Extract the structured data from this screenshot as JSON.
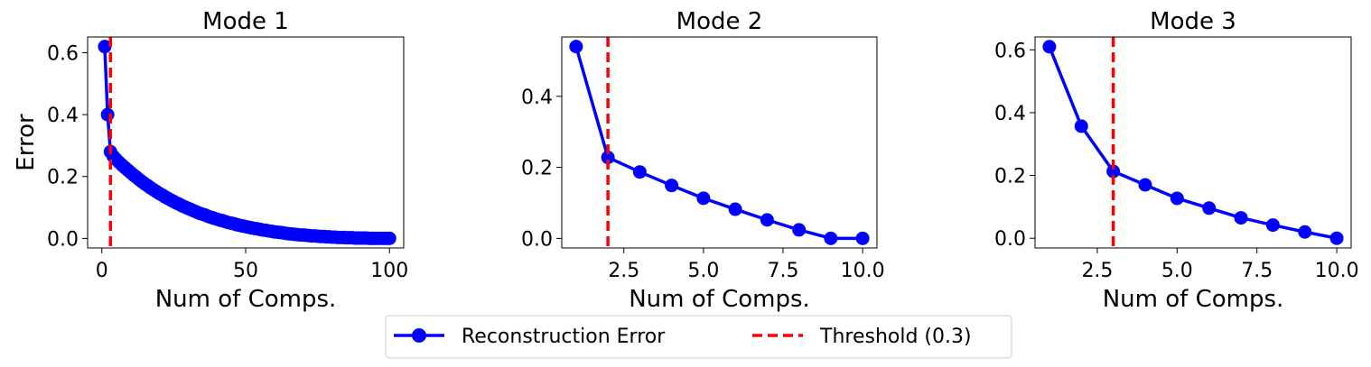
{
  "legend": {
    "series_label": "Reconstruction Error",
    "threshold_label": "Threshold (0.3)"
  },
  "colors": {
    "series": "#0000ff",
    "threshold": "#ff0000"
  },
  "chart_data": [
    {
      "type": "line",
      "title": "Mode 1",
      "xlabel": "Num of Comps.",
      "ylabel": "Error",
      "xlim": [
        -4.95,
        104.95
      ],
      "ylim": [
        -0.031,
        0.651
      ],
      "xticks": [
        {
          "v": 0,
          "label": "0"
        },
        {
          "v": 50,
          "label": "50"
        },
        {
          "v": 100,
          "label": "100"
        }
      ],
      "yticks": [
        {
          "v": 0,
          "label": "0.0"
        },
        {
          "v": 0.2,
          "label": "0.2"
        },
        {
          "v": 0.4,
          "label": "0.4"
        },
        {
          "v": 0.6,
          "label": "0.6"
        }
      ],
      "threshold_x": 3,
      "series": [
        {
          "x": [
            1,
            2,
            3,
            4,
            5,
            6,
            7,
            8,
            9,
            10,
            11,
            12,
            13,
            14,
            15,
            16,
            17,
            18,
            19,
            20,
            21,
            22,
            23,
            24,
            25,
            26,
            27,
            28,
            29,
            30,
            31,
            32,
            33,
            34,
            35,
            36,
            37,
            38,
            39,
            40,
            41,
            42,
            43,
            44,
            45,
            46,
            47,
            48,
            49,
            50,
            51,
            52,
            53,
            54,
            55,
            56,
            57,
            58,
            59,
            60,
            61,
            62,
            63,
            64,
            65,
            66,
            67,
            68,
            69,
            70,
            71,
            72,
            73,
            74,
            75,
            76,
            77,
            78,
            79,
            80,
            81,
            82,
            83,
            84,
            85,
            86,
            87,
            88,
            89,
            90,
            91,
            92,
            93,
            94,
            95,
            96,
            97,
            98,
            99,
            100
          ],
          "y": [
            0.62,
            0.4,
            0.28,
            0.265,
            0.255,
            0.246,
            0.237,
            0.229,
            0.221,
            0.213,
            0.205,
            0.198,
            0.19,
            0.183,
            0.176,
            0.17,
            0.163,
            0.157,
            0.151,
            0.145,
            0.14,
            0.134,
            0.129,
            0.124,
            0.119,
            0.114,
            0.11,
            0.105,
            0.101,
            0.097,
            0.093,
            0.089,
            0.085,
            0.081,
            0.078,
            0.075,
            0.071,
            0.068,
            0.065,
            0.062,
            0.059,
            0.057,
            0.054,
            0.051,
            0.049,
            0.047,
            0.044,
            0.042,
            0.04,
            0.038,
            0.036,
            0.034,
            0.032,
            0.031,
            0.029,
            0.027,
            0.026,
            0.024,
            0.023,
            0.021,
            0.02,
            0.019,
            0.018,
            0.016,
            0.015,
            0.014,
            0.013,
            0.012,
            0.011,
            0.011,
            0.01,
            0.009,
            0.008,
            0.008,
            0.007,
            0.006,
            0.006,
            0.005,
            0.005,
            0.004,
            0.004,
            0.003,
            0.003,
            0.003,
            0.002,
            0.002,
            0.002,
            0.001,
            0.001,
            0.001,
            0.001,
            0.001,
            0,
            0,
            0,
            0,
            0,
            0,
            0,
            0
          ]
        }
      ]
    },
    {
      "type": "line",
      "title": "Mode 2",
      "xlabel": "Num of Comps.",
      "ylabel": "",
      "xlim": [
        0.55,
        10.45
      ],
      "ylim": [
        -0.027,
        0.567
      ],
      "xticks": [
        {
          "v": 2.5,
          "label": "2.5"
        },
        {
          "v": 5,
          "label": "5.0"
        },
        {
          "v": 7.5,
          "label": "7.5"
        },
        {
          "v": 10,
          "label": "10.0"
        }
      ],
      "yticks": [
        {
          "v": 0,
          "label": "0.0"
        },
        {
          "v": 0.2,
          "label": "0.2"
        },
        {
          "v": 0.4,
          "label": "0.4"
        }
      ],
      "threshold_x": 2,
      "series": [
        {
          "x": [
            1,
            2,
            3,
            4,
            5,
            6,
            7,
            8,
            9,
            10
          ],
          "y": [
            0.54,
            0.228,
            0.187,
            0.149,
            0.113,
            0.082,
            0.052,
            0.024,
            0.0,
            0.0
          ]
        }
      ]
    },
    {
      "type": "line",
      "title": "Mode 3",
      "xlabel": "Num of Comps.",
      "ylabel": "",
      "xlim": [
        0.55,
        10.45
      ],
      "ylim": [
        -0.031,
        0.641
      ],
      "xticks": [
        {
          "v": 2.5,
          "label": "2.5"
        },
        {
          "v": 5,
          "label": "5.0"
        },
        {
          "v": 7.5,
          "label": "7.5"
        },
        {
          "v": 10,
          "label": "10.0"
        }
      ],
      "yticks": [
        {
          "v": 0,
          "label": "0.0"
        },
        {
          "v": 0.2,
          "label": "0.2"
        },
        {
          "v": 0.4,
          "label": "0.4"
        },
        {
          "v": 0.6,
          "label": "0.6"
        }
      ],
      "threshold_x": 3,
      "series": [
        {
          "x": [
            1,
            2,
            3,
            4,
            5,
            6,
            7,
            8,
            9,
            10
          ],
          "y": [
            0.61,
            0.357,
            0.213,
            0.17,
            0.127,
            0.096,
            0.065,
            0.042,
            0.02,
            0.0
          ]
        }
      ]
    }
  ]
}
